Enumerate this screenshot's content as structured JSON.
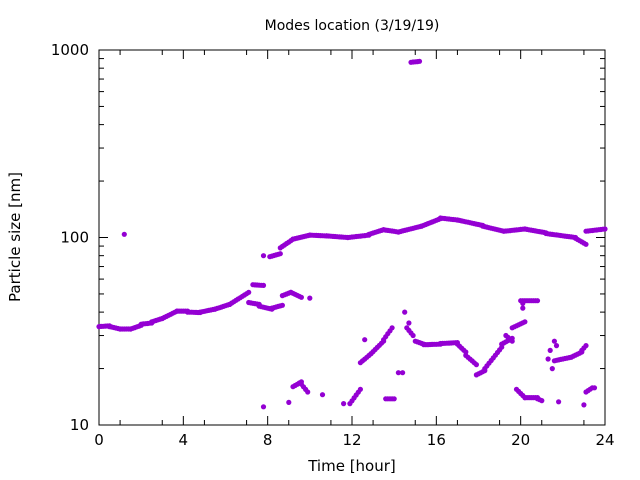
{
  "chart_data": {
    "type": "scatter",
    "title": "Modes location (3/19/19)",
    "xlabel": "Time [hour]",
    "ylabel": "Particle size [nm]",
    "xlim": [
      0,
      24
    ],
    "ylim": [
      10,
      1000
    ],
    "yscale": "log",
    "xticks": [
      0,
      4,
      8,
      12,
      16,
      20,
      24
    ],
    "yticks": [
      10,
      100,
      1000
    ],
    "marker_color": "#9400d3",
    "grid": false,
    "segments": [
      {
        "x0": 0.0,
        "x1": 0.5,
        "y0": 33.5,
        "y1": 33.8,
        "step": 0.1
      },
      {
        "x0": 0.5,
        "x1": 1.0,
        "y0": 33.5,
        "y1": 32.5,
        "step": 0.1
      },
      {
        "x0": 1.0,
        "x1": 1.5,
        "y0": 32.5,
        "y1": 32.5,
        "step": 0.1
      },
      {
        "x0": 1.5,
        "x1": 2.0,
        "y0": 32.5,
        "y1": 34.0,
        "step": 0.1
      },
      {
        "x0": 2.0,
        "x1": 2.5,
        "y0": 34.5,
        "y1": 35.0,
        "step": 0.1
      },
      {
        "x0": 2.5,
        "x1": 3.0,
        "y0": 35.5,
        "y1": 37.0,
        "step": 0.1
      },
      {
        "x0": 3.0,
        "x1": 3.7,
        "y0": 37.0,
        "y1": 40.5,
        "step": 0.1
      },
      {
        "x0": 3.7,
        "x1": 4.2,
        "y0": 40.5,
        "y1": 40.5,
        "step": 0.1
      },
      {
        "x0": 4.2,
        "x1": 4.8,
        "y0": 40.0,
        "y1": 39.8,
        "step": 0.1
      },
      {
        "x0": 4.8,
        "x1": 5.5,
        "y0": 40.0,
        "y1": 41.5,
        "step": 0.1
      },
      {
        "x0": 5.5,
        "x1": 6.2,
        "y0": 41.5,
        "y1": 44.0,
        "step": 0.1
      },
      {
        "x0": 6.2,
        "x1": 7.1,
        "y0": 44.0,
        "y1": 51.0,
        "step": 0.1
      },
      {
        "x0": 7.1,
        "x1": 7.6,
        "y0": 45.0,
        "y1": 44.0,
        "step": 0.1
      },
      {
        "x0": 7.6,
        "x1": 8.2,
        "y0": 43.0,
        "y1": 41.5,
        "step": 0.1
      },
      {
        "x0": 8.2,
        "x1": 8.7,
        "y0": 42.0,
        "y1": 43.5,
        "step": 0.1
      },
      {
        "x0": 8.7,
        "x1": 9.1,
        "y0": 49.0,
        "y1": 51.0,
        "step": 0.1
      },
      {
        "x0": 9.1,
        "x1": 9.6,
        "y0": 51.0,
        "y1": 48.0,
        "step": 0.1
      },
      {
        "x0": 7.3,
        "x1": 7.8,
        "y0": 56.0,
        "y1": 55.5,
        "step": 0.1
      },
      {
        "x0": 8.1,
        "x1": 8.6,
        "y0": 79.0,
        "y1": 82.0,
        "step": 0.1
      },
      {
        "x0": 8.6,
        "x1": 9.2,
        "y0": 88.0,
        "y1": 98.0,
        "step": 0.1
      },
      {
        "x0": 9.2,
        "x1": 10.0,
        "y0": 98.0,
        "y1": 103.0,
        "step": 0.1
      },
      {
        "x0": 10.0,
        "x1": 10.8,
        "y0": 103.0,
        "y1": 102.0,
        "step": 0.1
      },
      {
        "x0": 10.8,
        "x1": 11.8,
        "y0": 102.0,
        "y1": 100.0,
        "step": 0.1
      },
      {
        "x0": 11.8,
        "x1": 12.8,
        "y0": 100.0,
        "y1": 103.0,
        "step": 0.1
      },
      {
        "x0": 12.8,
        "x1": 13.5,
        "y0": 104.0,
        "y1": 110.0,
        "step": 0.1
      },
      {
        "x0": 13.5,
        "x1": 14.2,
        "y0": 110.0,
        "y1": 107.0,
        "step": 0.1
      },
      {
        "x0": 14.2,
        "x1": 15.3,
        "y0": 107.0,
        "y1": 115.0,
        "step": 0.1
      },
      {
        "x0": 15.3,
        "x1": 16.2,
        "y0": 115.0,
        "y1": 126.0,
        "step": 0.1
      },
      {
        "x0": 16.2,
        "x1": 17.0,
        "y0": 127.0,
        "y1": 124.0,
        "step": 0.1
      },
      {
        "x0": 17.0,
        "x1": 18.2,
        "y0": 124.0,
        "y1": 116.0,
        "step": 0.1
      },
      {
        "x0": 18.2,
        "x1": 19.2,
        "y0": 115.0,
        "y1": 108.0,
        "step": 0.1
      },
      {
        "x0": 19.2,
        "x1": 20.2,
        "y0": 108.0,
        "y1": 111.0,
        "step": 0.1
      },
      {
        "x0": 20.2,
        "x1": 21.2,
        "y0": 111.0,
        "y1": 106.0,
        "step": 0.1
      },
      {
        "x0": 21.2,
        "x1": 22.6,
        "y0": 105.0,
        "y1": 100.0,
        "step": 0.1
      },
      {
        "x0": 22.6,
        "x1": 23.1,
        "y0": 99.0,
        "y1": 92.0,
        "step": 0.1
      },
      {
        "x0": 23.1,
        "x1": 24.0,
        "y0": 108.0,
        "y1": 111.0,
        "step": 0.1
      },
      {
        "x0": 14.8,
        "x1": 15.2,
        "y0": 860.0,
        "y1": 870.0,
        "step": 0.1
      },
      {
        "x0": 12.4,
        "x1": 12.9,
        "y0": 21.5,
        "y1": 24.0,
        "step": 0.1
      },
      {
        "x0": 12.9,
        "x1": 13.5,
        "y0": 24.0,
        "y1": 28.0,
        "step": 0.1
      },
      {
        "x0": 13.5,
        "x1": 13.9,
        "y0": 28.5,
        "y1": 33.0,
        "step": 0.1
      },
      {
        "x0": 14.6,
        "x1": 14.9,
        "y0": 33.0,
        "y1": 30.0,
        "step": 0.1
      },
      {
        "x0": 15.0,
        "x1": 15.4,
        "y0": 28.0,
        "y1": 27.0,
        "step": 0.1
      },
      {
        "x0": 15.4,
        "x1": 16.2,
        "y0": 26.8,
        "y1": 27.0,
        "step": 0.1
      },
      {
        "x0": 16.2,
        "x1": 17.0,
        "y0": 27.2,
        "y1": 27.5,
        "step": 0.1
      },
      {
        "x0": 17.0,
        "x1": 17.4,
        "y0": 27.0,
        "y1": 24.5,
        "step": 0.1
      },
      {
        "x0": 17.4,
        "x1": 17.9,
        "y0": 23.5,
        "y1": 21.0,
        "step": 0.1
      },
      {
        "x0": 17.9,
        "x1": 18.3,
        "y0": 18.5,
        "y1": 19.5,
        "step": 0.1
      },
      {
        "x0": 18.3,
        "x1": 19.1,
        "y0": 20.0,
        "y1": 26.0,
        "step": 0.1
      },
      {
        "x0": 19.1,
        "x1": 19.6,
        "y0": 27.0,
        "y1": 29.0,
        "step": 0.1
      },
      {
        "x0": 19.6,
        "x1": 20.2,
        "y0": 33.0,
        "y1": 35.5,
        "step": 0.1
      },
      {
        "x0": 20.0,
        "x1": 20.8,
        "y0": 46.0,
        "y1": 46.0,
        "step": 0.1
      },
      {
        "x0": 19.3,
        "x1": 19.6,
        "y0": 30.0,
        "y1": 28.0,
        "step": 0.1
      },
      {
        "x0": 21.6,
        "x1": 22.4,
        "y0": 22.0,
        "y1": 23.0,
        "step": 0.1
      },
      {
        "x0": 22.4,
        "x1": 22.9,
        "y0": 23.0,
        "y1": 24.5,
        "step": 0.1
      },
      {
        "x0": 22.9,
        "x1": 23.1,
        "y0": 25.0,
        "y1": 26.5,
        "step": 0.1
      },
      {
        "x0": 9.2,
        "x1": 9.6,
        "y0": 16.0,
        "y1": 17.0,
        "step": 0.1
      },
      {
        "x0": 9.6,
        "x1": 9.9,
        "y0": 16.5,
        "y1": 15.0,
        "step": 0.1
      },
      {
        "x0": 11.9,
        "x1": 12.4,
        "y0": 13.0,
        "y1": 15.5,
        "step": 0.1
      },
      {
        "x0": 13.6,
        "x1": 14.0,
        "y0": 13.8,
        "y1": 13.8,
        "step": 0.1
      },
      {
        "x0": 19.8,
        "x1": 20.2,
        "y0": 15.5,
        "y1": 14.0,
        "step": 0.1
      },
      {
        "x0": 20.2,
        "x1": 20.8,
        "y0": 14.0,
        "y1": 14.0,
        "step": 0.1
      },
      {
        "x0": 20.8,
        "x1": 21.0,
        "y0": 13.8,
        "y1": 13.5,
        "step": 0.1
      },
      {
        "x0": 23.1,
        "x1": 23.4,
        "y0": 15.0,
        "y1": 15.8,
        "step": 0.1
      }
    ],
    "points": [
      [
        1.2,
        104
      ],
      [
        7.8,
        80
      ],
      [
        7.8,
        12.5
      ],
      [
        9.0,
        13.2
      ],
      [
        10.0,
        47.5
      ],
      [
        10.6,
        14.5
      ],
      [
        11.6,
        13.0
      ],
      [
        12.6,
        28.5
      ],
      [
        14.2,
        19.0
      ],
      [
        14.4,
        19.0
      ],
      [
        14.5,
        40.0
      ],
      [
        14.7,
        35.0
      ],
      [
        21.4,
        25.0
      ],
      [
        21.6,
        28.0
      ],
      [
        21.7,
        26.5
      ],
      [
        21.5,
        20.0
      ],
      [
        21.8,
        13.3
      ],
      [
        21.3,
        22.5
      ],
      [
        23.0,
        12.8
      ],
      [
        23.5,
        15.8
      ],
      [
        20.1,
        42.0
      ],
      [
        20.1,
        44.5
      ]
    ]
  }
}
